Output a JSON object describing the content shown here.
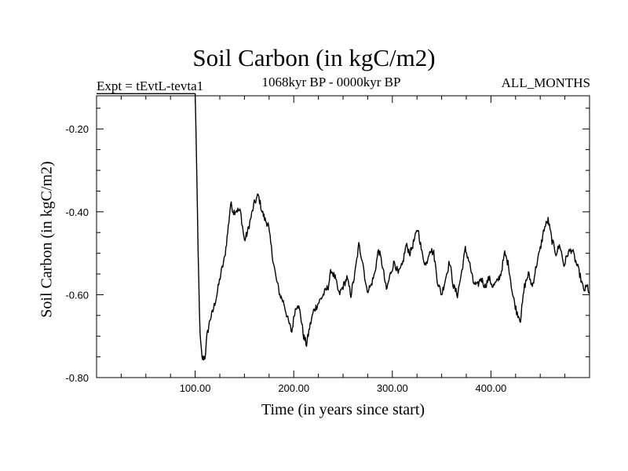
{
  "chart_data": {
    "type": "line",
    "title": "Soil Carbon (in kgC/m2)",
    "subtitle_left": "Expt = tEvtL-tevta1",
    "subtitle_center": "1068kyr BP - 0000kyr BP",
    "subtitle_right": "ALL_MONTHS",
    "xlabel": "Time (in years since start)",
    "ylabel": "Soil Carbon (in kgC/m2)",
    "xlim": [
      0,
      500
    ],
    "ylim": [
      -0.8,
      -0.12
    ],
    "x_ticks": [
      100,
      200,
      300,
      400
    ],
    "x_tick_labels": [
      "100.00",
      "200.00",
      "300.00",
      "400.00"
    ],
    "y_ticks": [
      -0.2,
      -0.4,
      -0.6,
      -0.8
    ],
    "y_tick_labels": [
      "-0.20",
      "-0.40",
      "-0.60",
      "-0.80"
    ],
    "grid": false,
    "series": [
      {
        "name": "Soil Carbon",
        "color": "#000000",
        "x": [
          0,
          100,
          101,
          103,
          105,
          107,
          110,
          112,
          115,
          118,
          122,
          126,
          130,
          133,
          136,
          139,
          142,
          146,
          150,
          153,
          156,
          160,
          164,
          168,
          171,
          174,
          178,
          182,
          186,
          190,
          194,
          198,
          201,
          204,
          207,
          210,
          213,
          216,
          220,
          225,
          230,
          235,
          238,
          242,
          246,
          250,
          254,
          258,
          262,
          266,
          270,
          274,
          278,
          282,
          286,
          290,
          294,
          298,
          302,
          306,
          310,
          314,
          318,
          322,
          326,
          330,
          334,
          338,
          342,
          346,
          350,
          354,
          358,
          362,
          366,
          370,
          374,
          378,
          382,
          386,
          390,
          394,
          398,
          402,
          406,
          410,
          414,
          418,
          422,
          426,
          430,
          434,
          438,
          442,
          446,
          450,
          454,
          458,
          462,
          466,
          470,
          474,
          478,
          482,
          486,
          490,
          494,
          498,
          500
        ],
        "values": [
          -0.115,
          -0.115,
          -0.22,
          -0.5,
          -0.7,
          -0.755,
          -0.75,
          -0.7,
          -0.66,
          -0.64,
          -0.6,
          -0.55,
          -0.51,
          -0.45,
          -0.38,
          -0.4,
          -0.395,
          -0.4,
          -0.47,
          -0.45,
          -0.42,
          -0.38,
          -0.36,
          -0.4,
          -0.42,
          -0.43,
          -0.5,
          -0.56,
          -0.6,
          -0.62,
          -0.66,
          -0.69,
          -0.64,
          -0.62,
          -0.65,
          -0.7,
          -0.72,
          -0.68,
          -0.64,
          -0.62,
          -0.6,
          -0.58,
          -0.54,
          -0.56,
          -0.6,
          -0.58,
          -0.56,
          -0.6,
          -0.55,
          -0.48,
          -0.52,
          -0.59,
          -0.58,
          -0.55,
          -0.49,
          -0.53,
          -0.59,
          -0.55,
          -0.52,
          -0.55,
          -0.53,
          -0.48,
          -0.5,
          -0.47,
          -0.44,
          -0.5,
          -0.53,
          -0.49,
          -0.5,
          -0.57,
          -0.6,
          -0.56,
          -0.52,
          -0.58,
          -0.6,
          -0.55,
          -0.49,
          -0.52,
          -0.57,
          -0.58,
          -0.56,
          -0.58,
          -0.56,
          -0.58,
          -0.57,
          -0.55,
          -0.5,
          -0.53,
          -0.6,
          -0.64,
          -0.66,
          -0.58,
          -0.55,
          -0.58,
          -0.53,
          -0.49,
          -0.44,
          -0.42,
          -0.47,
          -0.5,
          -0.48,
          -0.53,
          -0.5,
          -0.49,
          -0.52,
          -0.55,
          -0.59,
          -0.58,
          -0.6
        ]
      }
    ]
  }
}
